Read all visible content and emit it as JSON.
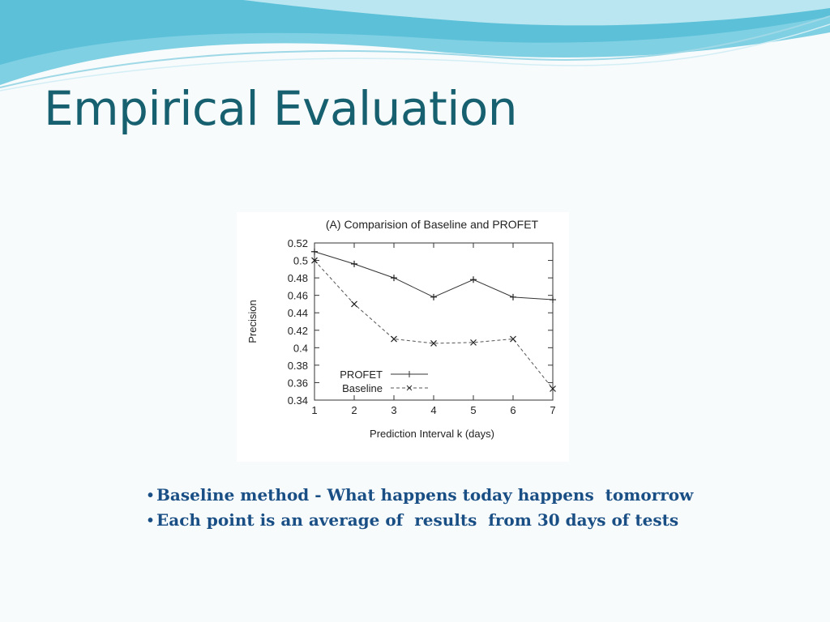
{
  "slide": {
    "title": "Empirical Evaluation",
    "bullets": [
      "Baseline method - What happens today happens  tomorrow",
      "Each point is an average of  results  from 30 days of tests"
    ],
    "colors": {
      "title": "#17606f",
      "bullet_text": "#1a4f85",
      "header_wave": "#5cc0d8"
    }
  },
  "chart_data": {
    "type": "line",
    "title": "(A) Comparision of Baseline and PROFET",
    "xlabel": "Prediction Interval k (days)",
    "ylabel": "Precision",
    "x": [
      1,
      2,
      3,
      4,
      5,
      6,
      7
    ],
    "xlim": [
      1,
      7
    ],
    "ylim": [
      0.34,
      0.52
    ],
    "x_ticks": [
      "1",
      "2",
      "3",
      "4",
      "5",
      "6",
      "7"
    ],
    "y_ticks": [
      "0.52",
      "0.5",
      "0.48",
      "0.46",
      "0.44",
      "0.42",
      "0.4",
      "0.38",
      "0.36",
      "0.34"
    ],
    "y_tick_values": [
      0.52,
      0.5,
      0.48,
      0.46,
      0.44,
      0.42,
      0.4,
      0.38,
      0.36,
      0.34
    ],
    "grid": false,
    "legend_position": "bottom-left",
    "series": [
      {
        "name": "PROFET",
        "values": [
          0.51,
          0.496,
          0.48,
          0.458,
          0.478,
          0.458,
          0.455
        ],
        "marker": "+",
        "style": "solid"
      },
      {
        "name": "Baseline",
        "values": [
          0.5,
          0.45,
          0.41,
          0.405,
          0.406,
          0.41,
          0.353
        ],
        "marker": "x",
        "style": "dashed"
      }
    ]
  }
}
